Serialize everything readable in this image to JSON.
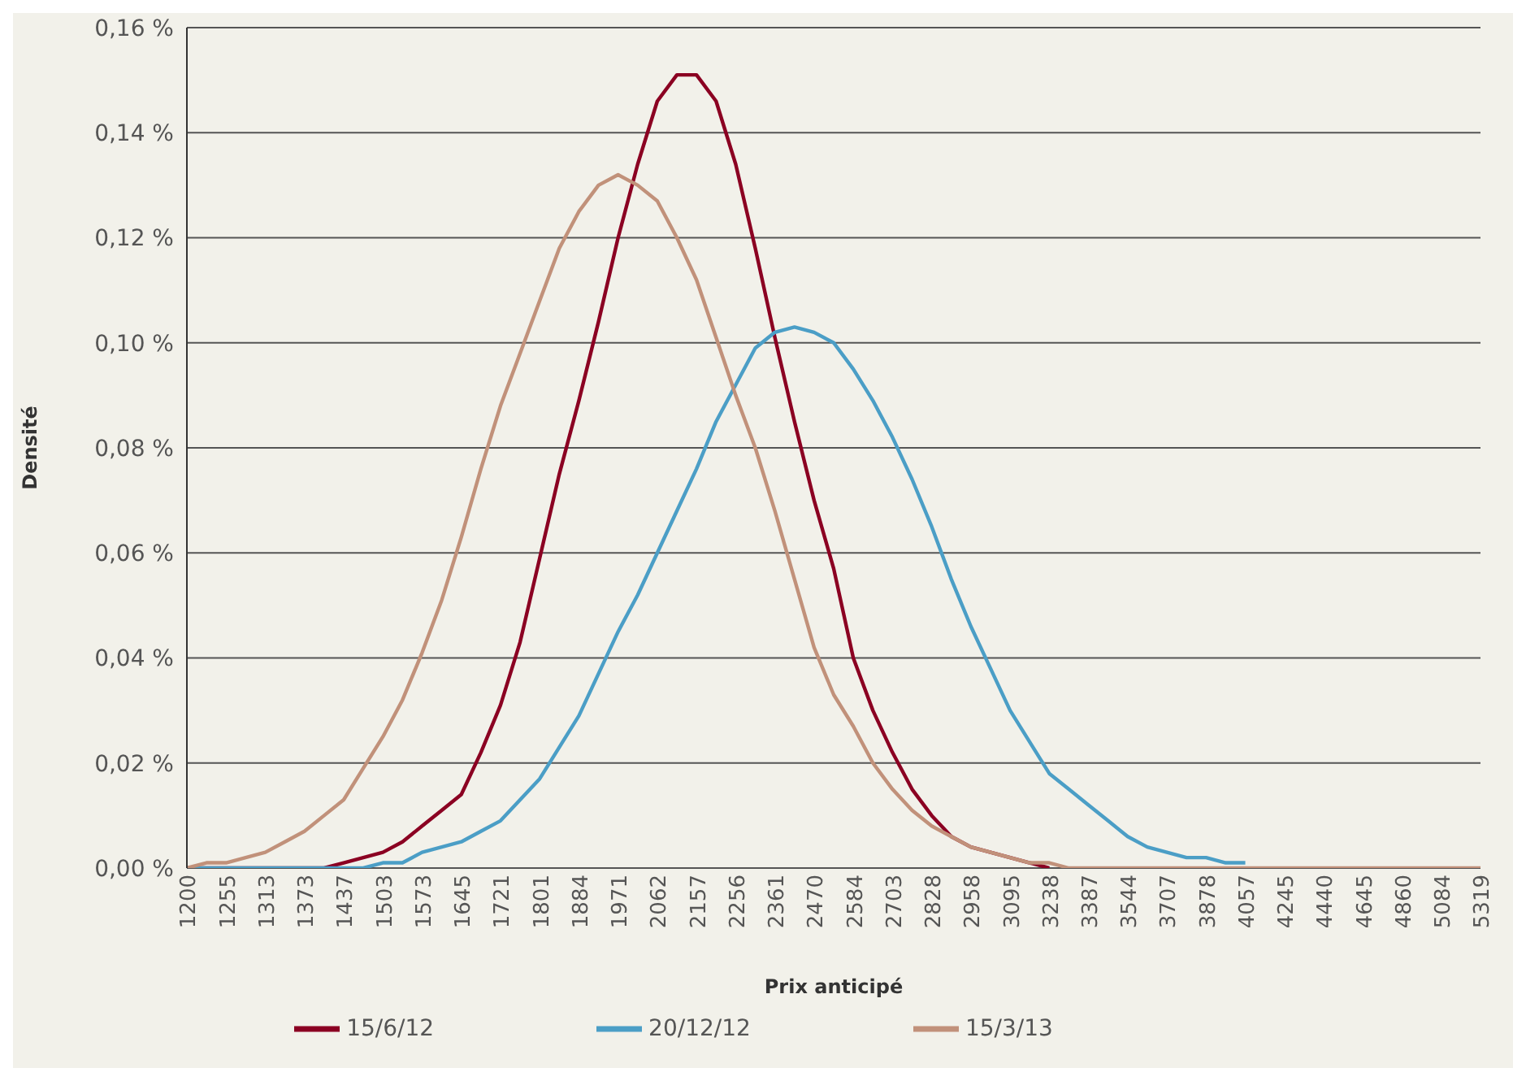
{
  "chart_data": {
    "type": "line",
    "xlabel": "Prix anticipé",
    "ylabel": "Densité",
    "categories": [
      "1200",
      null,
      "1255",
      null,
      "1313",
      null,
      "1373",
      null,
      "1437",
      null,
      "1503",
      null,
      "1573",
      null,
      "1645",
      null,
      "1721",
      null,
      "1801",
      null,
      "1884",
      null,
      "1971",
      null,
      "2062",
      null,
      "2157",
      null,
      "2256",
      null,
      "2361",
      null,
      "2470",
      null,
      "2584",
      null,
      "2703",
      null,
      "2828",
      null,
      "2958",
      null,
      "3095",
      null,
      "3238",
      null,
      "3387",
      null,
      "3544",
      null,
      "3707",
      null,
      "3878",
      null,
      "4057",
      null,
      "4245",
      null,
      "4440",
      null,
      "4645",
      null,
      "4860",
      null,
      "5084",
      null,
      "5319"
    ],
    "series": [
      {
        "name": "15/6/12",
        "color": "#8b0022",
        "values": [
          0,
          0,
          0,
          0,
          0,
          0,
          0,
          0,
          0.001,
          0.002,
          0.003,
          0.005,
          0.008,
          0.011,
          0.014,
          0.022,
          0.031,
          0.043,
          0.059,
          0.075,
          0.089,
          0.104,
          0.12,
          0.134,
          0.146,
          0.151,
          0.151,
          0.146,
          0.134,
          0.118,
          0.101,
          0.085,
          0.07,
          0.057,
          0.04,
          0.03,
          0.022,
          0.015,
          0.01,
          0.006,
          0.004,
          0.003,
          0.002,
          0.001,
          0,
          null,
          null,
          null,
          null,
          null,
          null,
          null,
          null,
          null,
          null,
          null,
          null,
          null,
          null,
          null,
          null,
          null,
          null,
          null,
          null,
          null,
          null
        ]
      },
      {
        "name": "20/12/12",
        "color": "#4b9ec6",
        "values": [
          0,
          0,
          0,
          0,
          0,
          0,
          0,
          0,
          0,
          0,
          0.001,
          0.001,
          0.003,
          0.004,
          0.005,
          0.007,
          0.009,
          0.013,
          0.017,
          0.023,
          0.029,
          0.037,
          0.045,
          0.052,
          0.06,
          0.068,
          0.076,
          0.085,
          0.092,
          0.099,
          0.102,
          0.103,
          0.102,
          0.1,
          0.095,
          0.089,
          0.082,
          0.074,
          0.065,
          0.055,
          0.046,
          0.038,
          0.03,
          0.024,
          0.018,
          0.015,
          0.012,
          0.009,
          0.006,
          0.004,
          0.003,
          0.002,
          0.002,
          0.001,
          0.001,
          null,
          null,
          null,
          null,
          null,
          null,
          null,
          null,
          null,
          null,
          null,
          null
        ]
      },
      {
        "name": "15/3/13",
        "color": "#c1917a",
        "values": [
          0,
          0.001,
          0.001,
          0.002,
          0.003,
          0.005,
          0.007,
          0.01,
          0.013,
          0.019,
          0.025,
          0.032,
          0.041,
          0.051,
          0.063,
          0.076,
          0.088,
          0.098,
          0.108,
          0.118,
          0.125,
          0.13,
          0.132,
          0.13,
          0.127,
          0.12,
          0.112,
          0.101,
          0.09,
          0.08,
          0.068,
          0.055,
          0.042,
          0.033,
          0.027,
          0.02,
          0.015,
          0.011,
          0.008,
          0.006,
          0.004,
          0.003,
          0.002,
          0.001,
          0.001,
          0,
          0,
          0,
          0,
          0,
          0,
          0,
          0,
          0,
          0,
          0,
          0,
          0,
          0,
          0,
          0,
          0,
          0,
          0,
          0,
          0,
          0
        ]
      }
    ],
    "ylim": [
      0,
      0.16
    ],
    "yticks": [
      {
        "value": 0,
        "label": "0,00 %"
      },
      {
        "value": 0.02,
        "label": "0,02 %"
      },
      {
        "value": 0.04,
        "label": "0,04 %"
      },
      {
        "value": 0.06,
        "label": "0,06 %"
      },
      {
        "value": 0.08,
        "label": "0,08 %"
      },
      {
        "value": 0.1,
        "label": "0,10 %"
      },
      {
        "value": 0.12,
        "label": "0,12 %"
      },
      {
        "value": 0.14,
        "label": "0,14 %"
      },
      {
        "value": 0.16,
        "label": "0,16 %"
      }
    ],
    "grid": "y",
    "legend": "bottom",
    "marker": "none",
    "line_style": "solid"
  }
}
